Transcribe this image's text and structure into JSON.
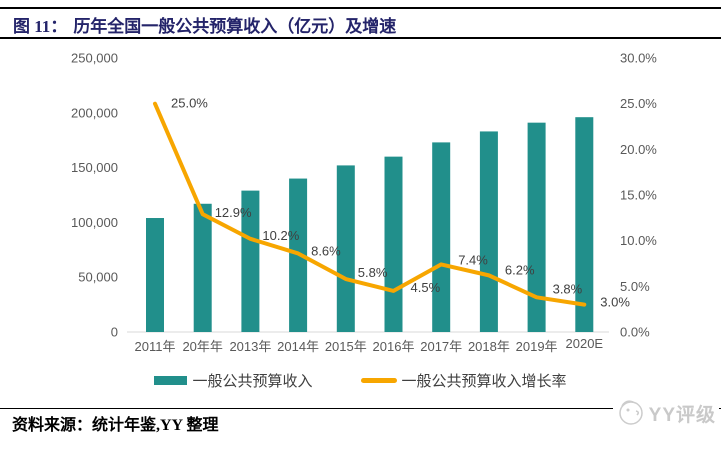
{
  "header": {
    "figure_label": "图 11：",
    "title": "历年全国一般公共预算收入（亿元）及增速"
  },
  "chart_data": {
    "type": "bar+line",
    "title": "历年全国一般公共预算收入（亿元）及增速",
    "categories": [
      "2011年",
      "20年年",
      "2013年",
      "2014年",
      "2015年",
      "2016年",
      "2017年",
      "2018年",
      "2019年",
      "2020E"
    ],
    "series": [
      {
        "name": "一般公共预算收入",
        "type": "bar",
        "axis": "left",
        "color": "#218F8B",
        "values": [
          104000,
          117000,
          129000,
          140000,
          152000,
          160000,
          173000,
          183000,
          191000,
          196000
        ]
      },
      {
        "name": "一般公共预算收入增长率",
        "type": "line",
        "axis": "right",
        "color": "#F7A600",
        "values": [
          25.0,
          12.9,
          10.2,
          8.6,
          5.8,
          4.5,
          7.4,
          6.2,
          3.8,
          3.0
        ],
        "labels": [
          "25.0%",
          "12.9%",
          "10.2%",
          "8.6%",
          "5.8%",
          "4.5%",
          "7.4%",
          "6.2%",
          "3.8%",
          "3.0%"
        ]
      }
    ],
    "left_axis": {
      "min": 0,
      "max": 250000,
      "step": 50000,
      "tick_labels": [
        "0",
        "50,000",
        "100,000",
        "150,000",
        "200,000",
        "250,000"
      ]
    },
    "right_axis": {
      "min": 0,
      "max": 30,
      "step": 5,
      "tick_labels": [
        "0.0%",
        "5.0%",
        "10.0%",
        "15.0%",
        "20.0%",
        "25.0%",
        "30.0%"
      ]
    },
    "grid": false,
    "legend_position": "bottom"
  },
  "footer": {
    "source_text": "资料来源：统计年鉴,YY 整理",
    "logo_text": "YY评级"
  }
}
